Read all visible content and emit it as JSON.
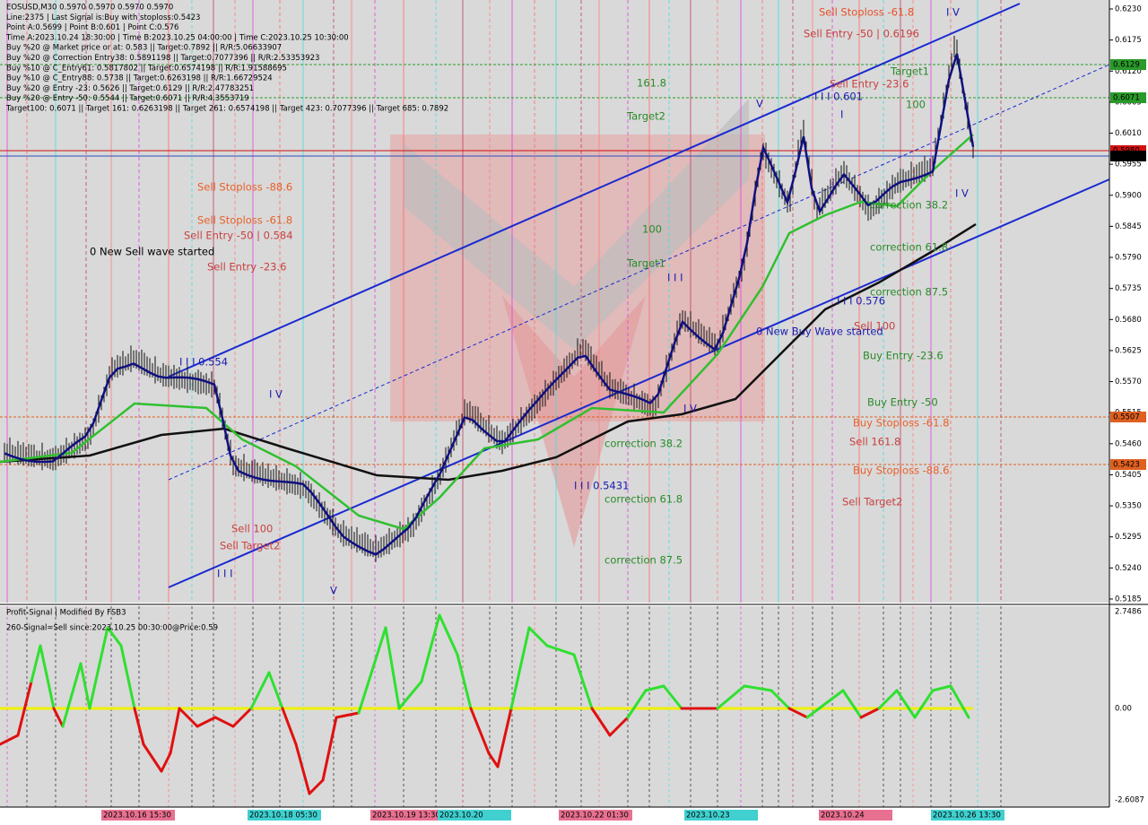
{
  "header": {
    "lines": [
      "EOSUSD,M30  0.5970 0.5970 0.5970 0.5970",
      "Line:2375 | Last Signal is:Buy with stoploss:0.5423",
      "Point A:0.5699 | Point B:0.601 | Point C:0.576",
      "Time A:2023.10.24 18:30:00 | Time B:2023.10.25 04:00:00 | Time C:2023.10.25 10:30:00",
      "Buy %20 @ Market price or at: 0.583 || Target:0.7892 || R/R:5.06633907",
      "Buy %20 @ Correction Entry38: 0.5891198 || Target:0.7077396 || R/R:2.53353923",
      "Buy %10 @ C_Entry61: 0.5817802 || Target:0.6574198 || R/R:1.91588695",
      "Buy %10 @ C_Entry88: 0.5738 || Target:0.6263198 || R/R:1.66729524",
      "Buy %20 @ Entry -23: 0.5626 || Target:0.6129 || R/R:2.47783251",
      "Buy %20 @ Entry -50: 0.5544 || Target:0.6071 || R/R:4.3553719",
      "Target100: 0.6071 || Target 161: 0.6263198 || Target 261: 0.6574198 || Target 423: 0.7077396 || Target 685: 0.7892"
    ]
  },
  "annotations": [
    "Sell Stoploss -61.8",
    "Sell Entry -50 | 0.6196",
    "Sell Entry -23.6",
    "Target1",
    "100",
    "161.8",
    "Target2",
    "I I I 0.601",
    "I",
    "V",
    "I V",
    "I V",
    "Sell Stoploss -88.6",
    "Sell Stoploss -61.8",
    "Sell Entry -50 | 0.584",
    "0 New Sell wave started",
    "Sell Entry -23.6",
    "100",
    "Target1",
    "I I I",
    "I I I 0.554",
    "I V",
    "I V",
    "correction 38.2",
    "correction 61.8",
    "correction 87.5",
    "I I I 0.576",
    "0 New Buy Wave started",
    "Sell 100",
    "Buy Entry -23.6",
    "Buy Entry -50",
    "Buy Stoploss -61.8",
    "Sell 161.8",
    "Buy Stoploss -88.6",
    "Sell Target2",
    "correction 38.2",
    "I I I 0.5431",
    "correction 61.8",
    "correction 87.5",
    "Sell 100",
    "Sell Target2",
    "I I I",
    "V"
  ],
  "price_axis": {
    "ticks": [
      "0.6230",
      "0.6175",
      "0.6120",
      "0.6065",
      "0.6010",
      "0.5955",
      "0.5900",
      "0.5845",
      "0.5790",
      "0.5735",
      "0.5680",
      "0.5625",
      "0.5570",
      "0.5515",
      "0.5460",
      "0.5405",
      "0.5350",
      "0.5295",
      "0.5240",
      "0.5185"
    ],
    "tags": [
      "0.6129",
      "0.6071",
      "0.5980",
      "0.5970",
      "0.5507",
      "0.5423"
    ]
  },
  "indicator": {
    "title": "Profit-Signal | Modified By FSB3",
    "signal": "260-Signal=Sell since:2023.10.25 00:30:00@Price:0.59",
    "ticks": [
      "2.7486",
      "0.00",
      "-2.6087"
    ]
  },
  "time_axis": {
    "labels": [
      "2023.10.16 15:30",
      "2023.10.18 05:30",
      "2023.10.19 13:30",
      "2023.10.20",
      "2023.10.22 01:30",
      "2023.10.23",
      "2023.10.24",
      "2023.10.26 13:30"
    ]
  }
}
